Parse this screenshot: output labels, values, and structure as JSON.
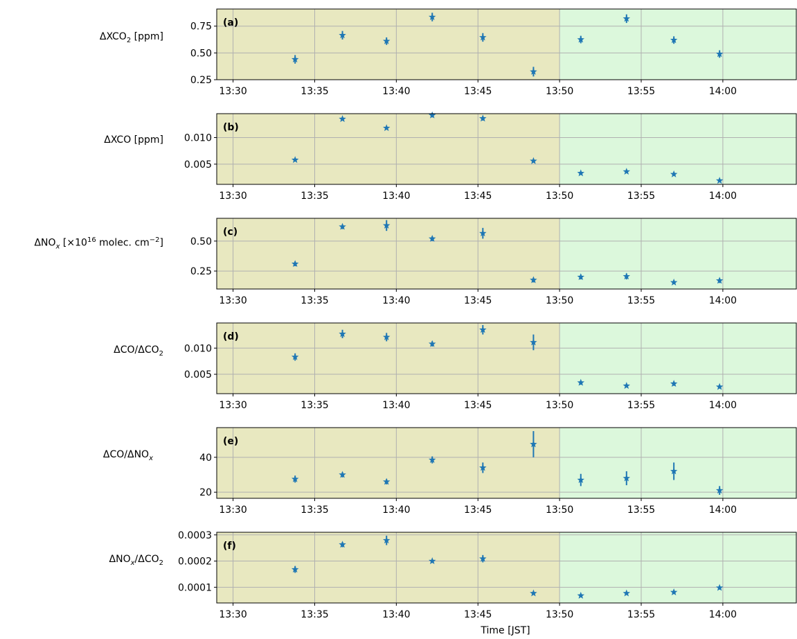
{
  "chart_data": {
    "type": "scatter",
    "marker": "star",
    "marker_color": "#1f77b4",
    "errorbar_color": "#1f77b4",
    "x_unit": "minutes",
    "xlim": [
      "13:29",
      "14:04.5"
    ],
    "x_tick_labels": [
      "13:30",
      "13:35",
      "13:40",
      "13:45",
      "13:50",
      "13:55",
      "14:00"
    ],
    "x_ticks": [
      "13:30",
      "13:35",
      "13:40",
      "13:45",
      "13:50",
      "13:55",
      "14:00"
    ],
    "xlabel": "Time [JST]",
    "grid": true,
    "shaded_regions": [
      {
        "x_start": "13:29",
        "x_end": "13:50",
        "color": "#e8e8c0"
      },
      {
        "x_start": "13:50",
        "x_end": "14:04.5",
        "color": "#dcf8dc"
      }
    ],
    "x": [
      "13:33.8",
      "13:36.7",
      "13:39.4",
      "13:42.2",
      "13:45.3",
      "13:48.4",
      "13:51.3",
      "13:54.1",
      "13:57.0",
      "13:59.8"
    ],
    "panels": [
      {
        "panel_label": "(a)",
        "ylabel": {
          "main": "ΔXCO",
          "sub": "2",
          "tail": " [ppm]"
        },
        "ylim": [
          0.25,
          0.91
        ],
        "y_ticks": [
          0.25,
          0.5,
          0.75
        ],
        "y_tick_labels": [
          "0.25",
          "0.50",
          "0.75"
        ],
        "values": [
          0.44,
          0.665,
          0.61,
          0.835,
          0.645,
          0.325,
          0.625,
          0.82,
          0.62,
          0.49
        ],
        "errors": [
          0.04,
          0.04,
          0.035,
          0.04,
          0.04,
          0.045,
          0.035,
          0.04,
          0.035,
          0.035
        ]
      },
      {
        "panel_label": "(b)",
        "ylabel": {
          "main": "ΔXCO [ppm]",
          "sub": "",
          "tail": ""
        },
        "ylim": [
          0.0012,
          0.0145
        ],
        "y_ticks": [
          0.005,
          0.01
        ],
        "y_tick_labels": [
          "0.005",
          "0.010"
        ],
        "values": [
          0.0058,
          0.0135,
          0.0118,
          0.0142,
          0.0136,
          0.0056,
          0.0033,
          0.0036,
          0.0031,
          0.0019
        ],
        "errors": [
          0.0003,
          0.0003,
          0.0003,
          0.0004,
          0.0004,
          0.0003,
          0.0003,
          0.0003,
          0.0003,
          0.0003
        ]
      },
      {
        "panel_label": "(c)",
        "ylabel": {
          "main": "ΔNO",
          "sub": "x",
          "mid": " [×10",
          "sup1": "16",
          "mid2": " molec. cm",
          "sup2": "−2",
          "tail": "]"
        },
        "ylim": [
          0.1,
          0.69
        ],
        "y_ticks": [
          0.25,
          0.5
        ],
        "y_tick_labels": [
          "0.25",
          "0.50"
        ],
        "values": [
          0.31,
          0.62,
          0.63,
          0.52,
          0.565,
          0.175,
          0.2,
          0.205,
          0.155,
          0.17
        ],
        "errors": [
          0.02,
          0.02,
          0.045,
          0.02,
          0.045,
          0.02,
          0.02,
          0.025,
          0.015,
          0.02
        ]
      },
      {
        "panel_label": "(d)",
        "ylabel": {
          "main": "ΔCO/ΔCO",
          "sub": "2",
          "tail": ""
        },
        "ylim": [
          0.0013,
          0.0148
        ],
        "y_ticks": [
          0.005,
          0.01
        ],
        "y_tick_labels": [
          "0.005",
          "0.010"
        ],
        "values": [
          0.0083,
          0.0127,
          0.0121,
          0.0108,
          0.0135,
          0.0111,
          0.0034,
          0.0028,
          0.0032,
          0.0026
        ],
        "errors": [
          0.0007,
          0.0008,
          0.0008,
          0.0005,
          0.0009,
          0.0015,
          0.0004,
          0.0003,
          0.0004,
          0.0003
        ]
      },
      {
        "panel_label": "(e)",
        "ylabel": {
          "main": "ΔCO/ΔNO",
          "sub": "x",
          "tail": ""
        },
        "ylim": [
          16.5,
          57
        ],
        "y_ticks": [
          20,
          40
        ],
        "y_tick_labels": [
          "20",
          "40"
        ],
        "values": [
          27.5,
          30,
          26,
          38.5,
          34,
          47.5,
          27,
          28,
          32,
          21
        ],
        "errors": [
          2,
          1.5,
          1.5,
          2,
          3,
          7.5,
          3.5,
          4,
          5,
          2.5
        ]
      },
      {
        "panel_label": "(f)",
        "ylabel": {
          "main": "ΔNO",
          "sub": "x",
          "tail": "/ΔCO",
          "sub2": "2"
        },
        "ylim": [
          4e-05,
          0.00031
        ],
        "y_ticks": [
          0.0001,
          0.0002,
          0.0003
        ],
        "y_tick_labels": [
          "0.0001",
          "0.0002",
          "0.0003"
        ],
        "values": [
          0.000168,
          0.000263,
          0.000279,
          0.0002,
          0.000209,
          7.7e-05,
          6.8e-05,
          7.7e-05,
          8.1e-05,
          9.8e-05
        ],
        "errors": [
          1.3e-05,
          1e-05,
          1.8e-05,
          7e-06,
          1.4e-05,
          6e-06,
          5e-06,
          6e-06,
          7e-06,
          7e-06
        ]
      }
    ]
  }
}
